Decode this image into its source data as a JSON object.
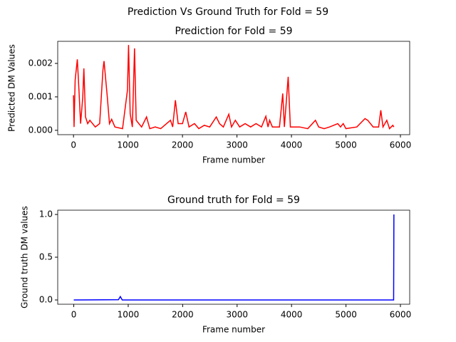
{
  "title": "Prediction Vs Ground Truth for Fold = 59",
  "chart_data": [
    {
      "type": "line",
      "title": "Prediction for Fold = 59",
      "x_label": "Frame number",
      "y_label": "Predicted DM Values",
      "xlim": [
        -290,
        6170
      ],
      "ylim": [
        -0.00013,
        0.00266
      ],
      "xticks": [
        0,
        1000,
        2000,
        3000,
        4000,
        5000,
        6000
      ],
      "yticks": [
        {
          "value": 0,
          "label": "0.000"
        },
        {
          "value": 0.001,
          "label": "0.001"
        },
        {
          "value": 0.002,
          "label": "0.002"
        }
      ],
      "series": [
        {
          "name": "Prediction",
          "color": "#ff0000",
          "x": [
            0,
            10,
            30,
            70,
            100,
            130,
            170,
            190,
            220,
            260,
            300,
            400,
            480,
            540,
            560,
            620,
            660,
            700,
            760,
            900,
            990,
            1010,
            1040,
            1080,
            1120,
            1150,
            1250,
            1340,
            1400,
            1500,
            1600,
            1780,
            1820,
            1870,
            1920,
            2000,
            2060,
            2120,
            2220,
            2300,
            2400,
            2500,
            2620,
            2680,
            2750,
            2850,
            2900,
            2970,
            3050,
            3150,
            3250,
            3350,
            3450,
            3530,
            3570,
            3600,
            3650,
            3700,
            3780,
            3840,
            3870,
            3940,
            3980,
            4050,
            4150,
            4300,
            4440,
            4500,
            4600,
            4700,
            4850,
            4900,
            4950,
            5000,
            5200,
            5350,
            5400,
            5500,
            5600,
            5640,
            5680,
            5750,
            5800,
            5860,
            5880
          ],
          "values": [
            0.00105,
            0.0001,
            0.0015,
            0.00212,
            0.0012,
            0.0002,
            0.001,
            0.00185,
            0.0004,
            0.0002,
            0.0003,
            0.0001,
            0.0002,
            0.0018,
            0.00207,
            0.001,
            0.0002,
            0.00033,
            0.0001,
            5e-05,
            0.0012,
            0.00255,
            0.0005,
            0.0001,
            0.00245,
            0.0003,
            0.0001,
            0.0004,
            5e-05,
            0.0001,
            5e-05,
            0.0003,
            0.0001,
            0.0009,
            0.0002,
            0.0002,
            0.00055,
            0.0001,
            0.0002,
            5e-05,
            0.00015,
            0.0001,
            0.0004,
            0.0002,
            0.0001,
            0.00048,
            0.0001,
            0.0003,
            0.0001,
            0.0002,
            0.0001,
            0.0002,
            0.0001,
            0.00042,
            0.0001,
            0.0003,
            0.0001,
            0.0001,
            0.0001,
            0.0011,
            0.0001,
            0.0016,
            0.0001,
            0.0001,
            0.0001,
            5e-05,
            0.0003,
            0.0001,
            5e-05,
            0.0001,
            0.0002,
            0.0001,
            0.0002,
            5e-05,
            0.0001,
            0.00035,
            0.0003,
            0.0001,
            0.0001,
            0.0006,
            0.0001,
            0.0003,
            5e-05,
            0.00015,
            0.0001
          ]
        }
      ]
    },
    {
      "type": "line",
      "title": "Ground truth for Fold = 59",
      "x_label": "Frame number",
      "y_label": "Ground truth DM values",
      "xlim": [
        -295,
        6170
      ],
      "ylim": [
        -0.05,
        1.05
      ],
      "xticks": [
        0,
        1000,
        2000,
        3000,
        4000,
        5000,
        6000
      ],
      "yticks": [
        {
          "value": 0,
          "label": "0.0"
        },
        {
          "value": 0.5,
          "label": "0.5"
        },
        {
          "value": 1,
          "label": "1.0"
        }
      ],
      "series": [
        {
          "name": "Ground truth",
          "color": "#0000ff",
          "x": [
            0,
            820,
            855,
            890,
            5875,
            5880
          ],
          "values": [
            0,
            0.003,
            0.04,
            0,
            0,
            1
          ]
        }
      ]
    }
  ]
}
